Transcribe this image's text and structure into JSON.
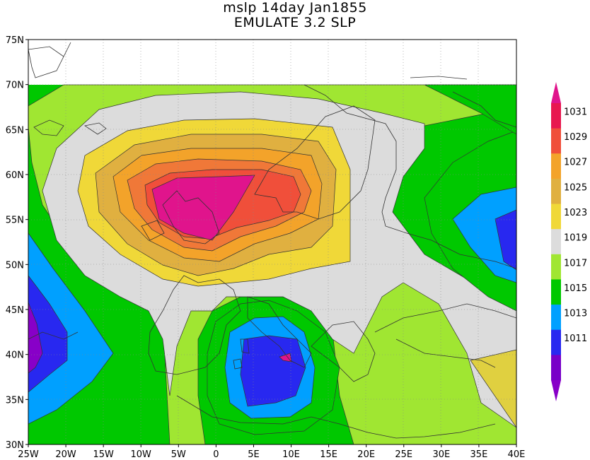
{
  "map": {
    "title_line1": "mslp 14day Jan1855",
    "title_line2": "EMULATE 3.2 SLP"
  },
  "chart_data": {
    "type": "contour-map",
    "variable": "mslp",
    "x_ticks": [
      "25W",
      "20W",
      "15W",
      "10W",
      "5W",
      "0",
      "5E",
      "10E",
      "15E",
      "20E",
      "25E",
      "30E",
      "35E",
      "40E"
    ],
    "y_ticks": [
      "75N",
      "70N",
      "65N",
      "60N",
      "55N",
      "50N",
      "45N",
      "40N",
      "35N",
      "30N"
    ],
    "lon_range": [
      -25,
      40
    ],
    "lat_range": [
      30,
      75
    ],
    "data_lat_max": 70,
    "colorbar": {
      "labels": [
        "1031",
        "1029",
        "1027",
        "1025",
        "1023",
        "1019",
        "1017",
        "1015",
        "1013",
        "1011"
      ],
      "colors": [
        "#e8174f",
        "#f04f3a",
        "#f3a32a",
        "#e0b040",
        "#f0d838",
        "#dcdcdc",
        "#a0e632",
        "#00c800",
        "#00a0ff",
        "#2828f0",
        "#7800c8"
      ],
      "top_arrow_color": "#e0148c",
      "bottom_arrow_color": "#8800c8"
    },
    "features": [
      {
        "type": "high",
        "center_lon": -3,
        "center_lat": 57,
        "max": 1031
      },
      {
        "type": "low",
        "center_lon": 9,
        "center_lat": 39,
        "min": 1011
      },
      {
        "type": "low",
        "center_lon": -25,
        "center_lat": 41,
        "min": 1011
      },
      {
        "type": "low",
        "center_lon": 39,
        "center_lat": 52,
        "min": 1011
      },
      {
        "type": "high",
        "center_lon": 38,
        "center_lat": 35,
        "max": 1023
      }
    ]
  }
}
